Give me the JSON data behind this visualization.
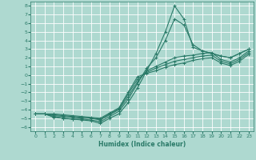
{
  "xlabel": "Humidex (Indice chaleur)",
  "xlim": [
    -0.5,
    23.5
  ],
  "ylim": [
    -6.5,
    8.5
  ],
  "xticks": [
    0,
    1,
    2,
    3,
    4,
    5,
    6,
    7,
    8,
    9,
    10,
    11,
    12,
    13,
    14,
    15,
    16,
    17,
    18,
    19,
    20,
    21,
    22,
    23
  ],
  "yticks": [
    8,
    7,
    6,
    5,
    4,
    3,
    2,
    1,
    0,
    -1,
    -2,
    -3,
    -4,
    -5,
    -6
  ],
  "bg_color": "#aed9d0",
  "grid_color": "#ffffff",
  "line_color": "#2a7a68",
  "lines": [
    {
      "x": [
        0,
        1,
        2,
        3,
        4,
        5,
        6,
        7,
        8,
        9,
        10,
        11,
        12,
        13,
        14,
        15,
        16,
        17,
        18,
        19,
        20,
        21,
        22,
        23
      ],
      "y": [
        -4.5,
        -4.5,
        -4.8,
        -5.0,
        -5.1,
        -5.2,
        -5.3,
        -5.6,
        -5.0,
        -4.5,
        -3.2,
        -1.5,
        0.5,
        2.5,
        5.0,
        8.0,
        6.5,
        3.2,
        2.8,
        2.5,
        2.2,
        2.0,
        2.5,
        3.0
      ]
    },
    {
      "x": [
        0,
        1,
        2,
        3,
        4,
        5,
        6,
        7,
        8,
        9,
        10,
        11,
        12,
        13,
        14,
        15,
        16,
        17,
        18,
        19,
        20,
        21,
        22,
        23
      ],
      "y": [
        -4.5,
        -4.5,
        -4.9,
        -5.0,
        -5.1,
        -5.1,
        -5.2,
        -5.4,
        -4.8,
        -4.2,
        -2.8,
        -1.0,
        0.8,
        2.0,
        4.0,
        6.5,
        5.8,
        3.5,
        2.8,
        2.5,
        2.2,
        2.0,
        2.5,
        3.0
      ]
    },
    {
      "x": [
        0,
        1,
        2,
        3,
        4,
        5,
        6,
        7,
        8,
        9,
        10,
        11,
        12,
        13,
        14,
        15,
        16,
        17,
        18,
        19,
        20,
        21,
        22,
        23
      ],
      "y": [
        -4.5,
        -4.5,
        -4.7,
        -4.8,
        -4.9,
        -5.0,
        -5.0,
        -5.2,
        -4.6,
        -4.0,
        -2.5,
        -0.8,
        0.5,
        1.0,
        1.5,
        2.0,
        2.2,
        2.3,
        2.5,
        2.6,
        1.8,
        1.5,
        2.0,
        2.8
      ]
    },
    {
      "x": [
        0,
        1,
        2,
        3,
        4,
        5,
        6,
        7,
        8,
        9,
        10,
        11,
        12,
        13,
        14,
        15,
        16,
        17,
        18,
        19,
        20,
        21,
        22,
        23
      ],
      "y": [
        -4.5,
        -4.5,
        -4.6,
        -4.7,
        -4.8,
        -4.9,
        -5.0,
        -5.1,
        -4.5,
        -3.9,
        -2.2,
        -0.5,
        0.3,
        0.8,
        1.2,
        1.6,
        1.8,
        2.0,
        2.2,
        2.3,
        1.6,
        1.3,
        1.8,
        2.6
      ]
    },
    {
      "x": [
        0,
        1,
        2,
        3,
        4,
        5,
        6,
        7,
        8,
        9,
        10,
        11,
        12,
        13,
        14,
        15,
        16,
        17,
        18,
        19,
        20,
        21,
        22,
        23
      ],
      "y": [
        -4.5,
        -4.5,
        -4.5,
        -4.6,
        -4.7,
        -4.8,
        -4.9,
        -5.0,
        -4.4,
        -3.8,
        -2.0,
        -0.2,
        0.2,
        0.5,
        0.9,
        1.2,
        1.4,
        1.7,
        1.9,
        2.0,
        1.4,
        1.1,
        1.6,
        2.4
      ]
    }
  ]
}
